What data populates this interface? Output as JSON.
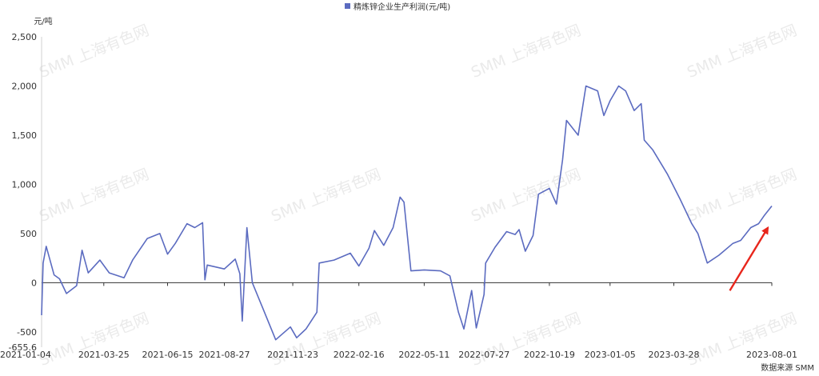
{
  "chart_data": {
    "type": "line",
    "legend": "精炼锌企业生产利润(元/吨)",
    "legend_position": "top-center",
    "unit_label": "元/吨",
    "source": "数据来源 SMM",
    "watermark": "SMM 上海有色网",
    "ylim": [
      -655.6,
      2500
    ],
    "ymin_label": "-655.6",
    "y_ticks": [
      {
        "value": 2500,
        "label": "2,500"
      },
      {
        "value": 2000,
        "label": "2,000"
      },
      {
        "value": 1500,
        "label": "1,500"
      },
      {
        "value": 1000,
        "label": "1,000"
      },
      {
        "value": 500,
        "label": "500"
      },
      {
        "value": 0,
        "label": "0"
      },
      {
        "value": -500,
        "label": "-500"
      }
    ],
    "xlim": [
      "2021-01-04",
      "2023-08-01"
    ],
    "x_ticks": [
      "2021-01-04",
      "2021-03-25",
      "2021-06-15",
      "2021-08-27",
      "2021-11-23",
      "2022-02-16",
      "2022-05-11",
      "2022-07-27",
      "2022-10-19",
      "2023-01-05",
      "2023-03-28",
      "2023-08-01"
    ],
    "series_color": "#5b6bc0",
    "arrow_color": "#e8261c",
    "grid": false,
    "series": [
      {
        "name": "精炼锌企业生产利润(元/吨)",
        "points": [
          [
            "2021-01-04",
            -330
          ],
          [
            "2021-01-06",
            200
          ],
          [
            "2021-01-10",
            370
          ],
          [
            "2021-01-20",
            80
          ],
          [
            "2021-01-27",
            40
          ],
          [
            "2021-02-05",
            -110
          ],
          [
            "2021-02-18",
            -30
          ],
          [
            "2021-02-25",
            330
          ],
          [
            "2021-03-05",
            100
          ],
          [
            "2021-03-20",
            230
          ],
          [
            "2021-04-01",
            100
          ],
          [
            "2021-04-20",
            50
          ],
          [
            "2021-05-01",
            230
          ],
          [
            "2021-05-20",
            450
          ],
          [
            "2021-06-05",
            500
          ],
          [
            "2021-06-15",
            290
          ],
          [
            "2021-06-25",
            400
          ],
          [
            "2021-07-10",
            600
          ],
          [
            "2021-07-20",
            560
          ],
          [
            "2021-07-30",
            610
          ],
          [
            "2021-08-02",
            30
          ],
          [
            "2021-08-05",
            180
          ],
          [
            "2021-08-27",
            140
          ],
          [
            "2021-09-10",
            240
          ],
          [
            "2021-09-16",
            90
          ],
          [
            "2021-09-19",
            -390
          ],
          [
            "2021-09-25",
            560
          ],
          [
            "2021-10-02",
            0
          ],
          [
            "2021-10-15",
            -250
          ],
          [
            "2021-11-01",
            -580
          ],
          [
            "2021-11-20",
            -450
          ],
          [
            "2021-11-28",
            -560
          ],
          [
            "2021-12-10",
            -470
          ],
          [
            "2021-12-24",
            -300
          ],
          [
            "2021-12-27",
            200
          ],
          [
            "2022-01-15",
            230
          ],
          [
            "2022-02-05",
            300
          ],
          [
            "2022-02-16",
            170
          ],
          [
            "2022-03-01",
            350
          ],
          [
            "2022-03-08",
            530
          ],
          [
            "2022-03-20",
            380
          ],
          [
            "2022-04-01",
            560
          ],
          [
            "2022-04-10",
            870
          ],
          [
            "2022-04-15",
            820
          ],
          [
            "2022-04-24",
            120
          ],
          [
            "2022-05-11",
            130
          ],
          [
            "2022-06-01",
            120
          ],
          [
            "2022-06-13",
            70
          ],
          [
            "2022-06-24",
            -300
          ],
          [
            "2022-07-01",
            -470
          ],
          [
            "2022-07-11",
            -80
          ],
          [
            "2022-07-17",
            -460
          ],
          [
            "2022-07-27",
            -120
          ],
          [
            "2022-07-29",
            200
          ],
          [
            "2022-08-10",
            360
          ],
          [
            "2022-08-25",
            520
          ],
          [
            "2022-09-05",
            490
          ],
          [
            "2022-09-10",
            540
          ],
          [
            "2022-09-18",
            320
          ],
          [
            "2022-09-28",
            480
          ],
          [
            "2022-10-05",
            900
          ],
          [
            "2022-10-19",
            960
          ],
          [
            "2022-10-28",
            800
          ],
          [
            "2022-11-05",
            1250
          ],
          [
            "2022-11-10",
            1650
          ],
          [
            "2022-11-25",
            1500
          ],
          [
            "2022-12-05",
            2000
          ],
          [
            "2022-12-20",
            1950
          ],
          [
            "2022-12-28",
            1700
          ],
          [
            "2023-01-05",
            1850
          ],
          [
            "2023-01-16",
            2000
          ],
          [
            "2023-01-25",
            1950
          ],
          [
            "2023-02-05",
            1750
          ],
          [
            "2023-02-14",
            1820
          ],
          [
            "2023-02-18",
            1450
          ],
          [
            "2023-03-01",
            1350
          ],
          [
            "2023-03-20",
            1100
          ],
          [
            "2023-04-05",
            850
          ],
          [
            "2023-04-20",
            600
          ],
          [
            "2023-04-28",
            500
          ],
          [
            "2023-05-10",
            200
          ],
          [
            "2023-05-25",
            280
          ],
          [
            "2023-06-12",
            400
          ],
          [
            "2023-06-22",
            430
          ],
          [
            "2023-07-05",
            560
          ],
          [
            "2023-07-15",
            600
          ],
          [
            "2023-07-22",
            680
          ],
          [
            "2023-08-01",
            780
          ]
        ]
      }
    ],
    "annotations": [
      {
        "type": "arrow",
        "description": "red trend arrow pointing up-right",
        "from": [
          "2023-06-08",
          -80
        ],
        "to": [
          "2023-07-27",
          560
        ]
      }
    ]
  }
}
